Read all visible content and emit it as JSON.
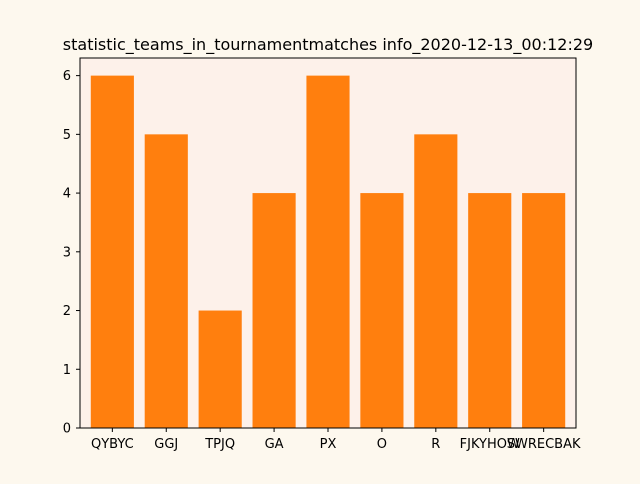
{
  "chart_data": {
    "type": "bar",
    "title": "statistic_teams_in_tournamentmatches info_2020-12-13_00:12:29",
    "xlabel": "",
    "ylabel": "",
    "categories": [
      "QYBYC",
      "GGJ",
      "TPJQ",
      "GA",
      "PX",
      "O",
      "R",
      "FJKYHOW",
      "SWRECBAK"
    ],
    "values": [
      6,
      5,
      2,
      4,
      6,
      4,
      5,
      4,
      4
    ],
    "ylim": [
      0,
      6.3
    ],
    "yticks": [
      "0",
      "1",
      "2",
      "3",
      "4",
      "5",
      "6"
    ],
    "grid": false,
    "legend": "none",
    "colors": {
      "bar": "#ff7f0e",
      "plot_background": "#fdf1ea",
      "figure_background": "#fdf8ee",
      "axis": "#000000"
    }
  }
}
